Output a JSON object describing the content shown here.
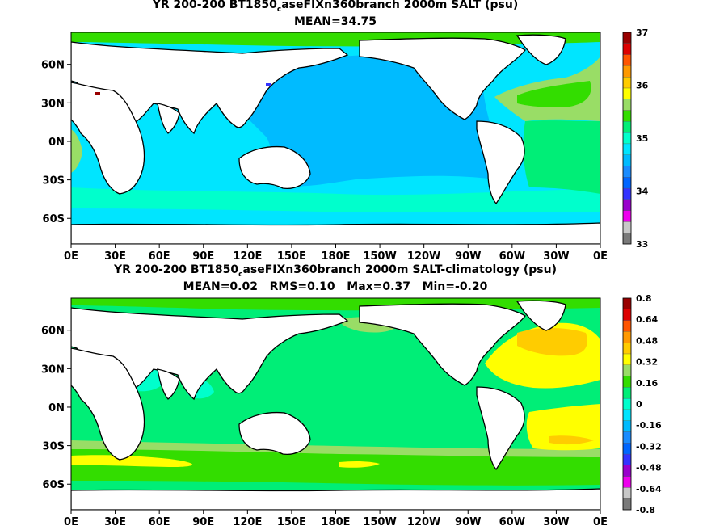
{
  "chart_data": [
    {
      "type": "heatmap",
      "title_pre": "YR 200-200 BT1850",
      "title_sub": "c",
      "title_post": "aseFIXn360branch 2000m SALT (psu)",
      "stats": "MEAN=34.75",
      "x_ticks": [
        "0E",
        "30E",
        "60E",
        "90E",
        "120E",
        "150E",
        "180E",
        "150W",
        "120W",
        "90W",
        "60W",
        "30W",
        "0E"
      ],
      "y_ticks": [
        "60N",
        "30N",
        "0N",
        "30S",
        "60S"
      ],
      "y_values": [
        60,
        30,
        0,
        -30,
        -60
      ],
      "lat_range": [
        -80,
        85
      ],
      "colorbar": {
        "labels": [
          "37",
          "36",
          "35",
          "34",
          "33"
        ],
        "levels": [
          33,
          37
        ],
        "colors": [
          "#7a7a7a",
          "#c8c8c8",
          "#ee00ee",
          "#9900cc",
          "#3333ff",
          "#0066ff",
          "#1a8cff",
          "#00bbff",
          "#00e5ff",
          "#00ffcc",
          "#00ee77",
          "#33dd00",
          "#99dd66",
          "#ffff00",
          "#ffcc00",
          "#ff9900",
          "#ff5500",
          "#dd0000",
          "#990000"
        ]
      },
      "regions": [
        {
          "name": "southern-band",
          "value": 34.9,
          "color": "#00e5ff"
        },
        {
          "name": "indian-ocean",
          "value": 34.9,
          "color": "#00e5ff"
        },
        {
          "name": "pacific-ocean",
          "value": 34.6,
          "color": "#00bbff"
        },
        {
          "name": "north-atlantic",
          "value": 35.1,
          "color": "#99dd66"
        },
        {
          "name": "south-atlantic",
          "value": 34.95,
          "color": "#00ee77"
        }
      ]
    },
    {
      "type": "heatmap",
      "title_pre": "YR 200-200 BT1850",
      "title_sub": "c",
      "title_post": "aseFIXn360branch 2000m SALT-climatology (psu)",
      "stats": "MEAN=0.02   RMS=0.10   Max=0.37   Min=-0.20",
      "x_ticks": [
        "0E",
        "30E",
        "60E",
        "90E",
        "120E",
        "150E",
        "180E",
        "150W",
        "120W",
        "90W",
        "60W",
        "30W",
        "0E"
      ],
      "y_ticks": [
        "60N",
        "30N",
        "0N",
        "30S",
        "60S"
      ],
      "y_values": [
        60,
        30,
        0,
        -30,
        -60
      ],
      "lat_range": [
        -80,
        85
      ],
      "colorbar": {
        "labels": [
          "0.8",
          "0.64",
          "0.48",
          "0.32",
          "0.16",
          "0",
          "-0.16",
          "-0.32",
          "-0.48",
          "-0.64",
          "-0.8"
        ],
        "levels": [
          -0.8,
          0.8
        ],
        "colors": [
          "#7a7a7a",
          "#c8c8c8",
          "#ee00ee",
          "#9900cc",
          "#3333ff",
          "#0066ff",
          "#1a8cff",
          "#00bbff",
          "#00e5ff",
          "#00ffcc",
          "#00ee77",
          "#33dd00",
          "#99dd66",
          "#ffff00",
          "#ffcc00",
          "#ff9900",
          "#ff5500",
          "#dd0000",
          "#990000"
        ]
      },
      "regions": [
        {
          "name": "global-ocean",
          "value": 0.02,
          "color": "#00ee77"
        },
        {
          "name": "southern-band",
          "value": 0.15,
          "color": "#33dd00"
        },
        {
          "name": "southern-yellow",
          "value": 0.25,
          "color": "#ffff00"
        },
        {
          "name": "north-atlantic-yellow",
          "value": 0.27,
          "color": "#ffff00"
        },
        {
          "name": "north-atlantic-orange",
          "value": 0.33,
          "color": "#ffcc00"
        },
        {
          "name": "indian-negative",
          "value": -0.05,
          "color": "#00ffcc"
        }
      ]
    }
  ]
}
